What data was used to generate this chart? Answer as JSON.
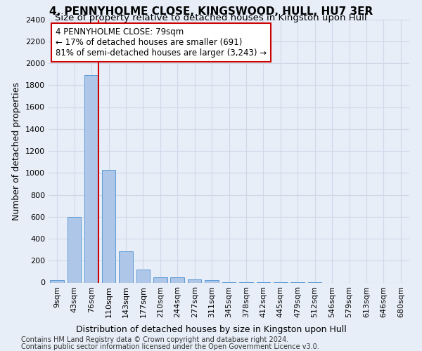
{
  "title": "4, PENNYHOLME CLOSE, KINGSWOOD, HULL, HU7 3ER",
  "subtitle": "Size of property relative to detached houses in Kingston upon Hull",
  "xlabel_bottom": "Distribution of detached houses by size in Kingston upon Hull",
  "ylabel": "Number of detached properties",
  "footnote1": "Contains HM Land Registry data © Crown copyright and database right 2024.",
  "footnote2": "Contains public sector information licensed under the Open Government Licence v3.0.",
  "bar_labels": [
    "9sqm",
    "43sqm",
    "76sqm",
    "110sqm",
    "143sqm",
    "177sqm",
    "210sqm",
    "244sqm",
    "277sqm",
    "311sqm",
    "345sqm",
    "378sqm",
    "412sqm",
    "445sqm",
    "479sqm",
    "512sqm",
    "546sqm",
    "579sqm",
    "613sqm",
    "646sqm",
    "680sqm"
  ],
  "bar_values": [
    20,
    600,
    1890,
    1030,
    285,
    120,
    50,
    45,
    30,
    20,
    5,
    3,
    2,
    2,
    1,
    1,
    0,
    0,
    0,
    0,
    0
  ],
  "bar_color": "#aec6e8",
  "bar_edge_color": "#5b9bd5",
  "bar_width": 0.8,
  "red_line_bar_index": 2,
  "annotation_text": "4 PENNYHOLME CLOSE: 79sqm\n← 17% of detached houses are smaller (691)\n81% of semi-detached houses are larger (3,243) →",
  "annotation_box_color": "#ffffff",
  "annotation_box_edgecolor": "#cc0000",
  "ylim": [
    0,
    2400
  ],
  "yticks": [
    0,
    200,
    400,
    600,
    800,
    1000,
    1200,
    1400,
    1600,
    1800,
    2000,
    2200,
    2400
  ],
  "grid_color": "#d0d8e8",
  "background_color": "#e8eef8",
  "title_fontsize": 11,
  "subtitle_fontsize": 9.5,
  "ylabel_fontsize": 9,
  "tick_fontsize": 8,
  "annotation_fontsize": 8.5,
  "footnote_fontsize": 7,
  "xlabel_bottom_fontsize": 9
}
